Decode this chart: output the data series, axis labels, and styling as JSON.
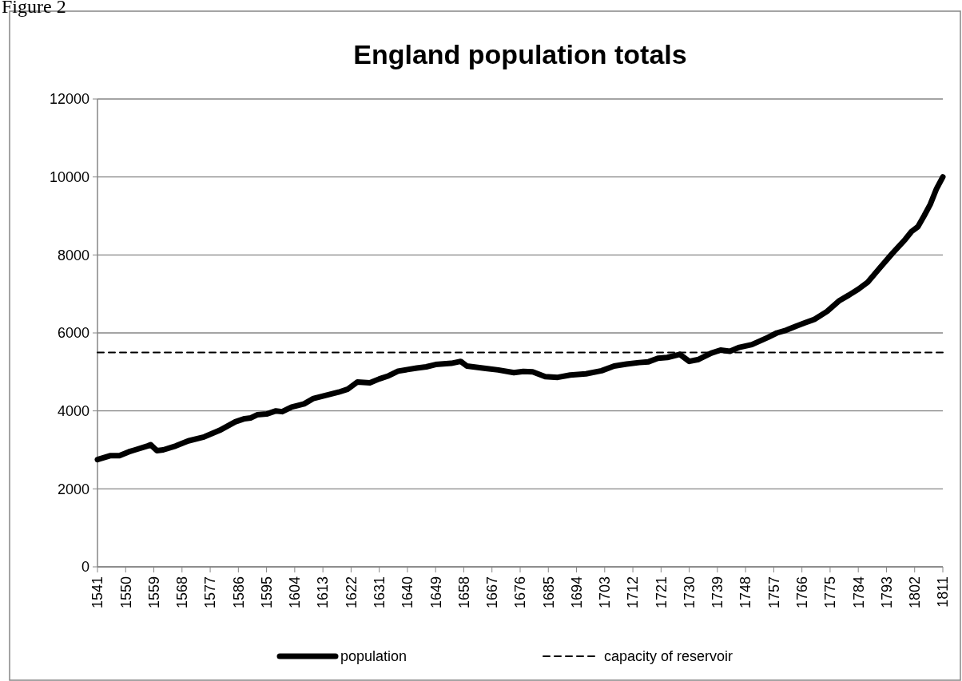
{
  "chart_data": {
    "type": "line",
    "title": "England population totals",
    "annotations": [
      "Figure 2"
    ],
    "xlim": [
      1541,
      1811
    ],
    "xticks": [
      1541,
      1550,
      1559,
      1568,
      1577,
      1586,
      1595,
      1604,
      1613,
      1622,
      1631,
      1640,
      1649,
      1658,
      1667,
      1676,
      1685,
      1694,
      1703,
      1712,
      1721,
      1730,
      1739,
      1748,
      1757,
      1766,
      1775,
      1784,
      1793,
      1802,
      1811
    ],
    "ylim": [
      0,
      12000
    ],
    "yticks": [
      0,
      2000,
      4000,
      6000,
      8000,
      10000,
      12000
    ],
    "grid": "y",
    "legend": "bottom",
    "series": [
      {
        "name": "population",
        "color": "#000000",
        "line_style": "solid",
        "x": [
          1541,
          1545,
          1548,
          1551,
          1553,
          1557,
          1558,
          1560,
          1562,
          1566,
          1570,
          1575,
          1580,
          1585,
          1588,
          1590,
          1592,
          1595,
          1598,
          1600,
          1603,
          1607,
          1610,
          1615,
          1618,
          1621,
          1624,
          1628,
          1631,
          1634,
          1637,
          1640,
          1643,
          1646,
          1649,
          1654,
          1657,
          1659,
          1662,
          1665,
          1669,
          1674,
          1677,
          1680,
          1684,
          1688,
          1692,
          1697,
          1702,
          1706,
          1710,
          1714,
          1717,
          1720,
          1723,
          1727,
          1730,
          1733,
          1737,
          1740,
          1743,
          1746,
          1750,
          1755,
          1758,
          1761,
          1764,
          1767,
          1770,
          1774,
          1778,
          1781,
          1784,
          1787,
          1791,
          1795,
          1799,
          1801,
          1803,
          1805,
          1807,
          1809,
          1811
        ],
        "values": [
          2750,
          2850,
          2850,
          2950,
          3000,
          3100,
          3130,
          2980,
          3000,
          3100,
          3230,
          3330,
          3500,
          3720,
          3800,
          3820,
          3900,
          3920,
          4000,
          3980,
          4100,
          4180,
          4320,
          4420,
          4480,
          4560,
          4740,
          4720,
          4820,
          4900,
          5020,
          5060,
          5100,
          5130,
          5190,
          5220,
          5270,
          5150,
          5120,
          5090,
          5050,
          4980,
          5010,
          5000,
          4880,
          4860,
          4920,
          4950,
          5030,
          5150,
          5200,
          5240,
          5260,
          5350,
          5370,
          5450,
          5270,
          5320,
          5480,
          5560,
          5530,
          5630,
          5700,
          5880,
          6000,
          6070,
          6170,
          6260,
          6350,
          6550,
          6830,
          6970,
          7120,
          7300,
          7680,
          8050,
          8400,
          8600,
          8720,
          9000,
          9300,
          9700,
          10000
        ]
      },
      {
        "name": "capacity of reservoir",
        "color": "#000000",
        "line_style": "dashed",
        "x": [
          1541,
          1811
        ],
        "values": [
          5500,
          5500
        ]
      }
    ]
  }
}
